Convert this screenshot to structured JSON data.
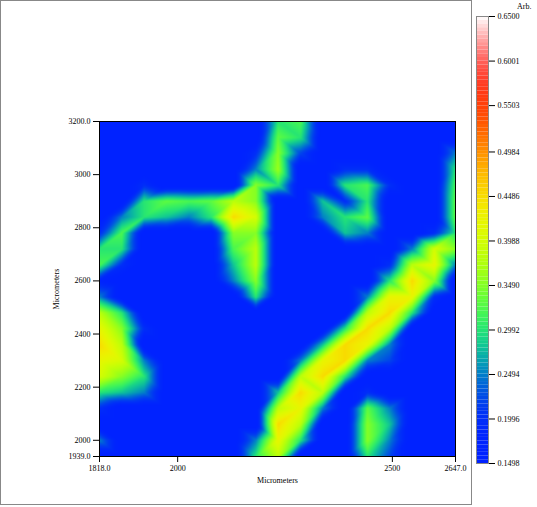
{
  "chart_data": {
    "type": "heatmap",
    "xlabel": "Micrometers",
    "ylabel": "Micrometers",
    "xlim": [
      1818,
      2647
    ],
    "ylim": [
      1939,
      3200
    ],
    "xticks": [
      {
        "value": 1818,
        "label": "1818.0"
      },
      2000,
      2500,
      {
        "value": 2647,
        "label": "2647.0"
      }
    ],
    "yticks": [
      {
        "value": 1939,
        "label": "1939.0"
      },
      2000,
      2200,
      2400,
      2600,
      2800,
      3000,
      {
        "value": 3200,
        "label": "3200.0"
      }
    ],
    "x": [
      1818,
      1870,
      1922,
      1974,
      2026,
      2078,
      2130,
      2182,
      2234,
      2286,
      2338,
      2390,
      2442,
      2494,
      2546,
      2598,
      2647
    ],
    "y": [
      3200,
      3140,
      3080,
      3020,
      2960,
      2900,
      2840,
      2780,
      2720,
      2660,
      2600,
      2540,
      2480,
      2420,
      2360,
      2300,
      2240,
      2180,
      2120,
      2060,
      2000,
      1939
    ],
    "cells": [
      [
        0.15,
        0.15,
        0.15,
        0.15,
        0.15,
        0.15,
        0.15,
        0.15,
        0.3,
        0.32,
        0.15,
        0.15,
        0.15,
        0.15,
        0.15,
        0.15,
        0.15
      ],
      [
        0.15,
        0.15,
        0.15,
        0.15,
        0.15,
        0.15,
        0.15,
        0.15,
        0.33,
        0.3,
        0.15,
        0.15,
        0.15,
        0.15,
        0.15,
        0.15,
        0.15
      ],
      [
        0.15,
        0.15,
        0.15,
        0.15,
        0.15,
        0.15,
        0.15,
        0.2,
        0.35,
        0.22,
        0.15,
        0.15,
        0.15,
        0.15,
        0.15,
        0.15,
        0.25
      ],
      [
        0.15,
        0.15,
        0.15,
        0.15,
        0.15,
        0.15,
        0.15,
        0.25,
        0.36,
        0.15,
        0.15,
        0.2,
        0.2,
        0.15,
        0.15,
        0.15,
        0.3
      ],
      [
        0.15,
        0.15,
        0.2,
        0.15,
        0.15,
        0.15,
        0.15,
        0.35,
        0.3,
        0.15,
        0.15,
        0.3,
        0.32,
        0.2,
        0.15,
        0.15,
        0.32
      ],
      [
        0.15,
        0.15,
        0.3,
        0.33,
        0.32,
        0.33,
        0.38,
        0.35,
        0.15,
        0.15,
        0.28,
        0.2,
        0.3,
        0.15,
        0.15,
        0.15,
        0.33
      ],
      [
        0.15,
        0.25,
        0.3,
        0.28,
        0.25,
        0.3,
        0.45,
        0.4,
        0.15,
        0.15,
        0.25,
        0.3,
        0.33,
        0.15,
        0.15,
        0.15,
        0.33
      ],
      [
        0.2,
        0.32,
        0.15,
        0.15,
        0.15,
        0.15,
        0.35,
        0.35,
        0.15,
        0.15,
        0.15,
        0.28,
        0.25,
        0.15,
        0.15,
        0.2,
        0.3
      ],
      [
        0.3,
        0.3,
        0.15,
        0.15,
        0.15,
        0.15,
        0.32,
        0.38,
        0.15,
        0.15,
        0.15,
        0.15,
        0.15,
        0.15,
        0.25,
        0.4,
        0.35
      ],
      [
        0.32,
        0.2,
        0.15,
        0.15,
        0.15,
        0.15,
        0.28,
        0.38,
        0.15,
        0.15,
        0.15,
        0.15,
        0.15,
        0.2,
        0.38,
        0.42,
        0.25
      ],
      [
        0.18,
        0.15,
        0.15,
        0.15,
        0.15,
        0.15,
        0.25,
        0.35,
        0.15,
        0.15,
        0.15,
        0.15,
        0.15,
        0.3,
        0.45,
        0.35,
        0.15
      ],
      [
        0.25,
        0.15,
        0.15,
        0.15,
        0.15,
        0.15,
        0.15,
        0.3,
        0.15,
        0.15,
        0.15,
        0.15,
        0.25,
        0.42,
        0.42,
        0.2,
        0.15
      ],
      [
        0.38,
        0.3,
        0.15,
        0.15,
        0.15,
        0.15,
        0.15,
        0.15,
        0.15,
        0.15,
        0.15,
        0.15,
        0.38,
        0.45,
        0.3,
        0.15,
        0.15
      ],
      [
        0.42,
        0.35,
        0.2,
        0.15,
        0.15,
        0.15,
        0.15,
        0.15,
        0.15,
        0.15,
        0.15,
        0.3,
        0.45,
        0.38,
        0.15,
        0.15,
        0.15
      ],
      [
        0.45,
        0.38,
        0.15,
        0.15,
        0.15,
        0.15,
        0.15,
        0.15,
        0.15,
        0.15,
        0.28,
        0.45,
        0.42,
        0.25,
        0.15,
        0.15,
        0.15
      ],
      [
        0.42,
        0.4,
        0.25,
        0.15,
        0.15,
        0.15,
        0.15,
        0.15,
        0.15,
        0.25,
        0.42,
        0.45,
        0.25,
        0.22,
        0.15,
        0.15,
        0.15
      ],
      [
        0.4,
        0.35,
        0.3,
        0.15,
        0.15,
        0.15,
        0.15,
        0.15,
        0.15,
        0.38,
        0.45,
        0.3,
        0.15,
        0.15,
        0.15,
        0.15,
        0.15
      ],
      [
        0.3,
        0.28,
        0.25,
        0.15,
        0.15,
        0.15,
        0.15,
        0.15,
        0.28,
        0.45,
        0.38,
        0.15,
        0.2,
        0.15,
        0.15,
        0.15,
        0.15
      ],
      [
        0.2,
        0.15,
        0.15,
        0.15,
        0.15,
        0.15,
        0.15,
        0.15,
        0.38,
        0.42,
        0.25,
        0.15,
        0.33,
        0.25,
        0.15,
        0.15,
        0.15
      ],
      [
        0.15,
        0.15,
        0.15,
        0.15,
        0.15,
        0.15,
        0.15,
        0.15,
        0.45,
        0.38,
        0.15,
        0.15,
        0.35,
        0.28,
        0.15,
        0.15,
        0.15
      ],
      [
        0.25,
        0.15,
        0.15,
        0.15,
        0.15,
        0.15,
        0.15,
        0.25,
        0.42,
        0.3,
        0.15,
        0.15,
        0.35,
        0.25,
        0.15,
        0.15,
        0.15
      ],
      [
        0.15,
        0.15,
        0.15,
        0.15,
        0.15,
        0.15,
        0.15,
        0.3,
        0.38,
        0.15,
        0.15,
        0.15,
        0.3,
        0.22,
        0.15,
        0.15,
        0.15
      ]
    ],
    "colorbar": {
      "label": "Arb.",
      "range": [
        0.1498,
        0.65
      ],
      "ticks": [
        {
          "value": 0.65,
          "label": "0.6500"
        },
        0.6001,
        0.5503,
        0.4984,
        0.4486,
        0.3988,
        {
          "value": 0.349,
          "label": "0.3490"
        },
        0.2992,
        0.2494,
        0.1996,
        0.1498
      ]
    }
  }
}
